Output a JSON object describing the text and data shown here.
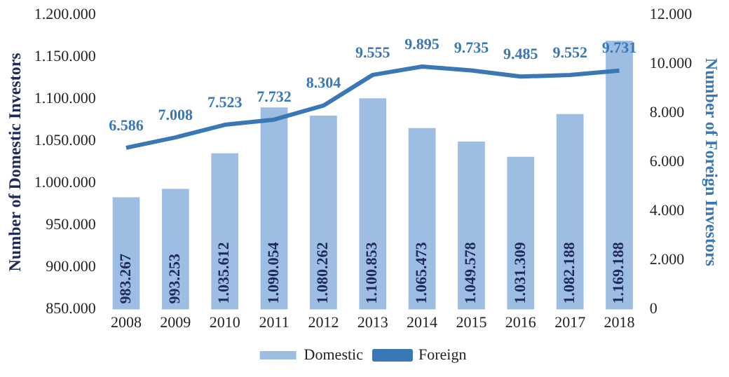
{
  "chart_data": {
    "type": "bar",
    "categories": [
      "2008",
      "2009",
      "2010",
      "2011",
      "2012",
      "2013",
      "2014",
      "2015",
      "2016",
      "2017",
      "2018"
    ],
    "ylabel": "Number of Domestic Investors",
    "y2label": "Number of Foreign Investors",
    "series": [
      {
        "name": "Domestic",
        "color": "#9dbde3",
        "values": [
          983267,
          993253,
          1035612,
          1090054,
          1080262,
          1100853,
          1065473,
          1049578,
          1031309,
          1082188,
          1169188
        ],
        "value_labels": [
          "983.267",
          "993.253",
          "1.035.612",
          "1.090.054",
          "1.080.262",
          "1.100.853",
          "1.065.473",
          "1.049.578",
          "1.031.309",
          "1.082.188",
          "1.169.188"
        ]
      },
      {
        "name": "Foreign",
        "type": "line",
        "axis": "y2",
        "color": "#3a78b5",
        "marker": "none",
        "values": [
          6586,
          7008,
          7523,
          7732,
          8304,
          9555,
          9895,
          9735,
          9485,
          9552,
          9731
        ],
        "value_labels": [
          "6.586",
          "7.008",
          "7.523",
          "7.732",
          "8.304",
          "9.555",
          "9.895",
          "9.735",
          "9.485",
          "9.552",
          "9.731"
        ]
      }
    ],
    "ylim": [
      850000,
      1200000
    ],
    "yticks": [
      {
        "value": 850000,
        "label": "850.000"
      },
      {
        "value": 900000,
        "label": "900.000"
      },
      {
        "value": 950000,
        "label": "950.000"
      },
      {
        "value": 1000000,
        "label": "1.000.000"
      },
      {
        "value": 1050000,
        "label": "1.050.000"
      },
      {
        "value": 1100000,
        "label": "1.100.000"
      },
      {
        "value": 1150000,
        "label": "1.150.000"
      },
      {
        "value": 1200000,
        "label": "1.200.000"
      }
    ],
    "y2lim": [
      0,
      12000
    ],
    "y2ticks": [
      0,
      {
        "value": 2000,
        "label": "2.000"
      },
      {
        "value": 4000,
        "label": "4.000"
      },
      {
        "value": 6000,
        "label": "6.000"
      },
      {
        "value": 8000,
        "label": "8.000"
      },
      {
        "value": 10000,
        "label": "10.000"
      },
      {
        "value": 12000,
        "label": "12.000"
      }
    ],
    "grid": false,
    "legend": "bottom"
  }
}
